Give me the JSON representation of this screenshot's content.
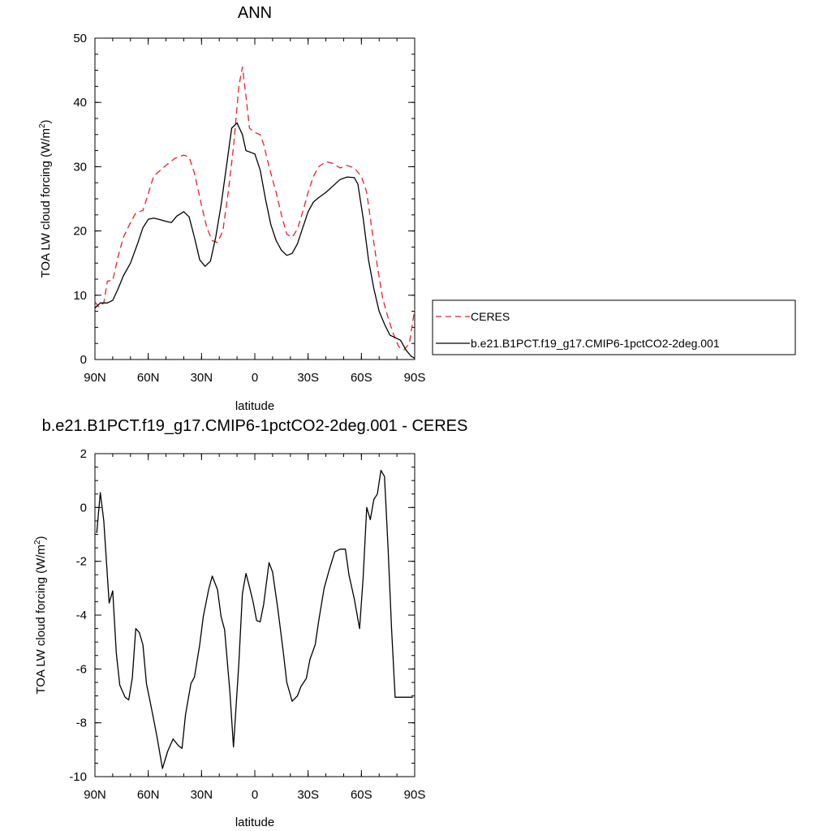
{
  "chart_data": [
    {
      "type": "line",
      "title": "ANN",
      "xlabel": "latitude",
      "ylabel": "TOA LW cloud forcing (W/m",
      "ylabel_sup": "2",
      "ylabel_suffix": ")",
      "xlim": [
        90,
        -90
      ],
      "ylim": [
        0,
        50
      ],
      "x_ticks": [
        {
          "value": 90,
          "label": "90N"
        },
        {
          "value": 60,
          "label": "60N"
        },
        {
          "value": 30,
          "label": "30N"
        },
        {
          "value": 0,
          "label": "0"
        },
        {
          "value": -30,
          "label": "30S"
        },
        {
          "value": -60,
          "label": "60S"
        },
        {
          "value": -90,
          "label": "90S"
        }
      ],
      "y_ticks": [
        0,
        10,
        20,
        30,
        40,
        50
      ],
      "y_tick_labels": [
        "0",
        "10",
        "20",
        "30",
        "40",
        "50"
      ],
      "grid": false,
      "legend": {
        "placement": "right",
        "entries": [
          {
            "name": "CERES",
            "color": "#e8202a",
            "dash": "dashed"
          },
          {
            "name": "b.e21.B1PCT.f19_g17.CMIP6-1pctCO2-2deg.001",
            "color": "#000000",
            "dash": "solid"
          }
        ]
      },
      "series": [
        {
          "name": "CERES",
          "color": "#e8202a",
          "dash": "dashed",
          "x": [
            90,
            88,
            85,
            83,
            80,
            77,
            74,
            70,
            67,
            63,
            60,
            57,
            53,
            50,
            45,
            40,
            37,
            34,
            30,
            27,
            24,
            21,
            18,
            15,
            12,
            9,
            7,
            5,
            3,
            0,
            -3,
            -5,
            -8,
            -12,
            -15,
            -18,
            -21,
            -24,
            -27,
            -30,
            -33,
            -36,
            -40,
            -44,
            -48,
            -52,
            -56,
            -60,
            -63,
            -66,
            -69,
            -72,
            -75,
            -78,
            -81,
            -84,
            -87,
            -90
          ],
          "values": [
            9,
            8.2,
            8.8,
            12.2,
            12.3,
            16,
            19,
            21.3,
            22.8,
            23.2,
            25.8,
            28.5,
            29.5,
            30.2,
            31.3,
            31.8,
            31.5,
            29,
            24,
            20.5,
            18.5,
            18.2,
            20,
            26,
            33,
            42.5,
            45.5,
            41,
            36,
            35.3,
            35,
            33.5,
            30,
            26,
            22.5,
            19.5,
            19,
            20.3,
            23,
            26,
            28.5,
            30,
            30.8,
            30.5,
            29.8,
            30.2,
            29.8,
            28.5,
            26,
            20,
            14.5,
            9.5,
            6.5,
            4,
            2,
            1.5,
            2.5,
            7.8
          ]
        },
        {
          "name": "b.e21.B1PCT.f19_g17.CMIP6-1pctCO2-2deg.001",
          "color": "#000000",
          "dash": "solid",
          "x": [
            90,
            87,
            83,
            80,
            77,
            74,
            70,
            66,
            63,
            60,
            57,
            54,
            50,
            47,
            44,
            40,
            37,
            34,
            31,
            28,
            25,
            22,
            19,
            16,
            13,
            10,
            7,
            5,
            3,
            0,
            -3,
            -6,
            -9,
            -12,
            -15,
            -18,
            -21,
            -24,
            -27,
            -30,
            -33,
            -36,
            -40,
            -44,
            -48,
            -52,
            -56,
            -58,
            -61,
            -64,
            -67,
            -70,
            -73,
            -76,
            -79,
            -82,
            -85,
            -88,
            -90
          ],
          "values": [
            8,
            8.8,
            8.8,
            9.2,
            11,
            13,
            15,
            18,
            20.5,
            21.8,
            22,
            21.8,
            21.5,
            21.3,
            22.3,
            23,
            22.2,
            19,
            15.5,
            14.5,
            15.3,
            19,
            24,
            30,
            36,
            36.8,
            35,
            32.5,
            32.3,
            32,
            29.5,
            25,
            21,
            18.5,
            17,
            16.2,
            16.5,
            18,
            20.5,
            23,
            24.5,
            25.2,
            26,
            27,
            28,
            28.4,
            28.3,
            27.3,
            22,
            15.5,
            11,
            7.5,
            5.5,
            3.8,
            3.4,
            3,
            1.5,
            0.5,
            0.2
          ]
        }
      ]
    },
    {
      "type": "line",
      "title": "b.e21.B1PCT.f19_g17.CMIP6-1pctCO2-2deg.001 - CERES",
      "xlabel": "latitude",
      "ylabel": "TOA LW cloud forcing (W/m",
      "ylabel_sup": "2",
      "ylabel_suffix": ")",
      "xlim": [
        90,
        -90
      ],
      "ylim": [
        -10,
        2
      ],
      "x_ticks": [
        {
          "value": 90,
          "label": "90N"
        },
        {
          "value": 60,
          "label": "60N"
        },
        {
          "value": 30,
          "label": "30N"
        },
        {
          "value": 0,
          "label": "0"
        },
        {
          "value": -30,
          "label": "30S"
        },
        {
          "value": -60,
          "label": "60S"
        },
        {
          "value": -90,
          "label": "90S"
        }
      ],
      "y_ticks": [
        -10,
        -8,
        -6,
        -4,
        -2,
        0,
        2
      ],
      "y_tick_labels": [
        "-10",
        "-8",
        "-6",
        "-4",
        "-2",
        "0",
        "2"
      ],
      "grid": false,
      "series": [
        {
          "color": "#000000",
          "dash": "solid",
          "x": [
            89,
            87,
            85,
            82,
            80,
            78,
            76,
            73,
            71,
            69,
            67,
            65,
            63,
            61,
            59,
            57,
            55,
            52,
            49,
            46,
            43,
            41,
            39,
            36,
            34,
            31,
            29,
            26,
            24,
            21,
            19,
            17,
            14,
            12,
            9,
            7,
            5,
            3,
            1,
            -1,
            -3,
            -5,
            -8,
            -10,
            -13,
            -16,
            -18,
            -21,
            -24,
            -26,
            -29,
            -31,
            -34,
            -36,
            -39,
            -42,
            -45,
            -48,
            -51,
            -53,
            -56,
            -59,
            -61,
            -63,
            -65,
            -67,
            -69,
            -71,
            -73,
            -75,
            -77,
            -79,
            -81,
            -83,
            -85,
            -87,
            -89
          ],
          "values": [
            -0.95,
            0.55,
            -0.5,
            -3.55,
            -3.1,
            -5.4,
            -6.6,
            -7.05,
            -7.15,
            -6.35,
            -4.5,
            -4.65,
            -5.1,
            -6.55,
            -7.2,
            -7.85,
            -8.55,
            -9.7,
            -9.05,
            -8.6,
            -8.85,
            -8.95,
            -7.7,
            -6.55,
            -6.3,
            -5.1,
            -4.05,
            -3.05,
            -2.55,
            -3.05,
            -4.05,
            -4.55,
            -6.9,
            -8.9,
            -5.8,
            -3.2,
            -2.45,
            -2.95,
            -3.5,
            -4.2,
            -4.25,
            -3.6,
            -2.05,
            -2.4,
            -3.8,
            -5.35,
            -6.5,
            -7.2,
            -7.0,
            -6.65,
            -6.35,
            -5.65,
            -5.1,
            -4.2,
            -3.0,
            -2.3,
            -1.65,
            -1.55,
            -1.55,
            -2.5,
            -3.4,
            -4.5,
            -2.6,
            0.0,
            -0.45,
            0.3,
            0.5,
            1.38,
            1.15,
            -1.5,
            -4.5,
            -7.05,
            -7.05,
            -7.05,
            -7.05,
            -7.05,
            -7.05
          ]
        }
      ]
    }
  ]
}
